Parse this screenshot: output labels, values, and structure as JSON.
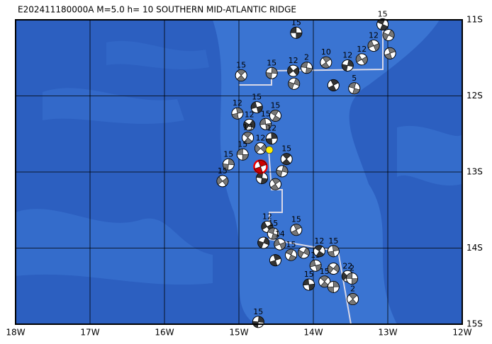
{
  "title": "E202411180000A M=5.0 h= 10 SOUTHERN MID-ATLANTIC RIDGE",
  "lon_ticks": [
    {
      "value": -18,
      "label": "18W"
    },
    {
      "value": -17,
      "label": "17W"
    },
    {
      "value": -16,
      "label": "16W"
    },
    {
      "value": -15,
      "label": "15W"
    },
    {
      "value": -14,
      "label": "14W"
    },
    {
      "value": -13,
      "label": "13W"
    },
    {
      "value": -12,
      "label": "12W"
    }
  ],
  "lat_ticks": [
    {
      "value": -11,
      "label": "11S"
    },
    {
      "value": -12,
      "label": "12S"
    },
    {
      "value": -13,
      "label": "13S"
    },
    {
      "value": -14,
      "label": "14S"
    },
    {
      "value": -15,
      "label": "15S"
    }
  ],
  "lonlim": [
    -18,
    -12
  ],
  "latlim": [
    -15,
    -11
  ],
  "mainshock": {
    "lon": -14.71,
    "lat": -12.93
  },
  "epicenter": {
    "lon": -14.59,
    "lat": -12.71
  },
  "events": [
    {
      "lon": -14.23,
      "lat": -11.17,
      "label": "15"
    },
    {
      "lon": -14.97,
      "lat": -11.73,
      "label": "15"
    },
    {
      "lon": -14.56,
      "lat": -11.7,
      "label": "15"
    },
    {
      "lon": -14.27,
      "lat": -11.67,
      "label": "12"
    },
    {
      "lon": -14.09,
      "lat": -11.63,
      "label": "2"
    },
    {
      "lon": -13.83,
      "lat": -11.56,
      "label": "10"
    },
    {
      "lon": -13.54,
      "lat": -11.6,
      "label": "12"
    },
    {
      "lon": -13.35,
      "lat": -11.52,
      "label": "12"
    },
    {
      "lon": -13.45,
      "lat": -11.9,
      "label": "5"
    },
    {
      "lon": -13.73,
      "lat": -11.86
    },
    {
      "lon": -14.26,
      "lat": -11.84
    },
    {
      "lon": -13.19,
      "lat": -11.34,
      "label": "12"
    },
    {
      "lon": -13.07,
      "lat": -11.06,
      "label": "15"
    },
    {
      "lon": -12.97,
      "lat": -11.44
    },
    {
      "lon": -12.99,
      "lat": -11.2
    },
    {
      "lon": -14.76,
      "lat": -12.15,
      "label": "15"
    },
    {
      "lon": -14.51,
      "lat": -12.26,
      "label": "15"
    },
    {
      "lon": -15.02,
      "lat": -12.23,
      "label": "12"
    },
    {
      "lon": -14.86,
      "lat": -12.38,
      "label": "12"
    },
    {
      "lon": -14.64,
      "lat": -12.37,
      "label": "15"
    },
    {
      "lon": -14.88,
      "lat": -12.55,
      "label": "15"
    },
    {
      "lon": -14.56,
      "lat": -12.56,
      "label": "12"
    },
    {
      "lon": -14.71,
      "lat": -12.69,
      "label": "12"
    },
    {
      "lon": -14.95,
      "lat": -12.77,
      "label": "15"
    },
    {
      "lon": -14.36,
      "lat": -12.83,
      "label": "15"
    },
    {
      "lon": -15.14,
      "lat": -12.9,
      "label": "15"
    },
    {
      "lon": -15.22,
      "lat": -13.12,
      "label": "15"
    },
    {
      "lon": -14.69,
      "lat": -13.08
    },
    {
      "lon": -14.51,
      "lat": -13.16
    },
    {
      "lon": -14.42,
      "lat": -12.99
    },
    {
      "lon": -14.62,
      "lat": -13.72,
      "label": "12"
    },
    {
      "lon": -14.54,
      "lat": -13.81,
      "label": "15"
    },
    {
      "lon": -14.23,
      "lat": -13.76,
      "label": "15"
    },
    {
      "lon": -14.67,
      "lat": -13.93
    },
    {
      "lon": -14.45,
      "lat": -13.95,
      "label": "14"
    },
    {
      "lon": -14.3,
      "lat": -14.09,
      "label": "15"
    },
    {
      "lon": -14.51,
      "lat": -14.16
    },
    {
      "lon": -14.13,
      "lat": -14.06
    },
    {
      "lon": -13.97,
      "lat": -14.23,
      "label": "15"
    },
    {
      "lon": -13.92,
      "lat": -14.04,
      "label": "12"
    },
    {
      "lon": -13.73,
      "lat": -14.04,
      "label": "15"
    },
    {
      "lon": -13.73,
      "lat": -14.27
    },
    {
      "lon": -14.06,
      "lat": -14.48,
      "label": "15"
    },
    {
      "lon": -13.85,
      "lat": -14.44,
      "label": "15"
    },
    {
      "lon": -13.73,
      "lat": -14.51
    },
    {
      "lon": -13.54,
      "lat": -14.37,
      "label": "22"
    },
    {
      "lon": -13.48,
      "lat": -14.4,
      "label": "2"
    },
    {
      "lon": -13.47,
      "lat": -14.67,
      "label": "2"
    },
    {
      "lon": -14.74,
      "lat": -14.97,
      "label": "15"
    }
  ]
}
